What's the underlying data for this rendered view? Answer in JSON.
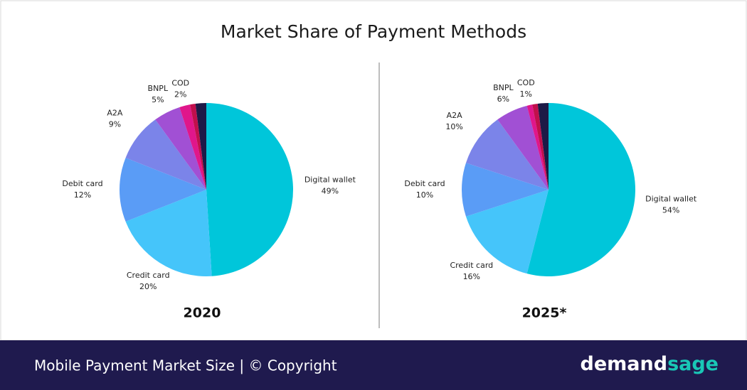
{
  "title": "Market Share of Payment Methods",
  "chart_data": [
    {
      "type": "pie",
      "subtitle": "2020",
      "categories": [
        "Digital wallet",
        "Credit card",
        "Debit card",
        "A2A",
        "BNPL",
        "COD",
        null,
        null
      ],
      "values": [
        49,
        20,
        12,
        9,
        5,
        2,
        1,
        2
      ],
      "value_labels": [
        "49%",
        "20%",
        "12%",
        "9%",
        "5%",
        "2%",
        null,
        null
      ],
      "colors": [
        "#00c6da",
        "#45c5fa",
        "#5a9cf6",
        "#7b84e9",
        "#a150d4",
        "#e0168b",
        "#c10f4c",
        "#1d1a47"
      ]
    },
    {
      "type": "pie",
      "subtitle": "2025*",
      "categories": [
        "Digital wallet",
        "Credit card",
        "Debit card",
        "A2A",
        "BNPL",
        "COD",
        null,
        null
      ],
      "values": [
        54,
        16,
        10,
        10,
        6,
        1,
        1,
        2
      ],
      "value_labels": [
        "54%",
        "16%",
        "10%",
        "10%",
        "6%",
        "1%",
        null,
        null
      ],
      "colors": [
        "#00c6da",
        "#45c5fa",
        "#5a9cf6",
        "#7b84e9",
        "#a150d4",
        "#e0168b",
        "#c10f4c",
        "#1d1a47"
      ]
    }
  ],
  "footer": {
    "text": "Mobile Payment Market Size | © Copyright",
    "brand_left": "demand",
    "brand_right": "sage"
  }
}
